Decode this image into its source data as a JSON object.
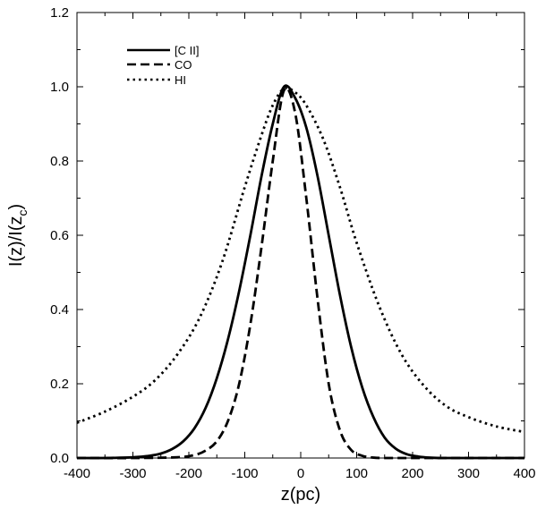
{
  "chart_data": {
    "type": "line",
    "title": "",
    "xlabel": "z(pc)",
    "ylabel_main": "I(z)/I(z",
    "ylabel_sub": "c",
    "ylabel_close": ")",
    "xlim": [
      -400,
      400
    ],
    "ylim": [
      0,
      1.2
    ],
    "xticks": [
      -400,
      -300,
      -200,
      -100,
      0,
      100,
      200,
      300,
      400
    ],
    "xtick_labels": [
      "-400",
      "-300",
      "-200",
      "-100",
      "0",
      "100",
      "200",
      "300",
      "400"
    ],
    "yticks": [
      0,
      0.2,
      0.4,
      0.6,
      0.8,
      1.0,
      1.2
    ],
    "ytick_labels": [
      "0.0",
      "0.2",
      "0.4",
      "0.6",
      "0.8",
      "1.0",
      "1.2"
    ],
    "grid": false,
    "legend_position": "top-left",
    "series": [
      {
        "name": "[C II]",
        "style": "solid",
        "x": [
          -400,
          -350,
          -300,
          -270,
          -250,
          -230,
          -210,
          -190,
          -170,
          -150,
          -130,
          -110,
          -90,
          -70,
          -50,
          -30,
          -10,
          10,
          30,
          50,
          70,
          90,
          110,
          130,
          150,
          170,
          190,
          210,
          230,
          250,
          280,
          320,
          400
        ],
        "y": [
          0.0,
          0.0,
          0.002,
          0.006,
          0.012,
          0.024,
          0.045,
          0.08,
          0.135,
          0.215,
          0.32,
          0.45,
          0.6,
          0.76,
          0.9,
          1.0,
          0.97,
          0.89,
          0.76,
          0.6,
          0.44,
          0.3,
          0.19,
          0.11,
          0.055,
          0.025,
          0.01,
          0.004,
          0.001,
          0.0,
          0.0,
          0.0,
          0.0
        ]
      },
      {
        "name": "CO",
        "style": "dashed",
        "x": [
          -400,
          -300,
          -220,
          -190,
          -170,
          -150,
          -130,
          -110,
          -90,
          -70,
          -50,
          -30,
          -10,
          10,
          30,
          50,
          70,
          90,
          110,
          130,
          150,
          180,
          250,
          400
        ],
        "y": [
          0.0,
          0.0,
          0.002,
          0.008,
          0.02,
          0.045,
          0.1,
          0.2,
          0.36,
          0.57,
          0.8,
          0.99,
          0.93,
          0.7,
          0.43,
          0.2,
          0.075,
          0.022,
          0.006,
          0.001,
          0.0,
          0.0,
          0.0,
          0.0
        ]
      },
      {
        "name": "HI",
        "style": "dotted",
        "x": [
          -400,
          -350,
          -300,
          -260,
          -220,
          -180,
          -140,
          -100,
          -70,
          -50,
          -30,
          -10,
          10,
          40,
          70,
          100,
          140,
          180,
          220,
          260,
          300,
          350,
          400
        ],
        "y": [
          0.095,
          0.125,
          0.165,
          0.21,
          0.28,
          0.38,
          0.53,
          0.73,
          0.87,
          0.95,
          0.995,
          0.985,
          0.95,
          0.86,
          0.73,
          0.58,
          0.41,
          0.28,
          0.195,
          0.14,
          0.11,
          0.085,
          0.07
        ]
      }
    ]
  }
}
